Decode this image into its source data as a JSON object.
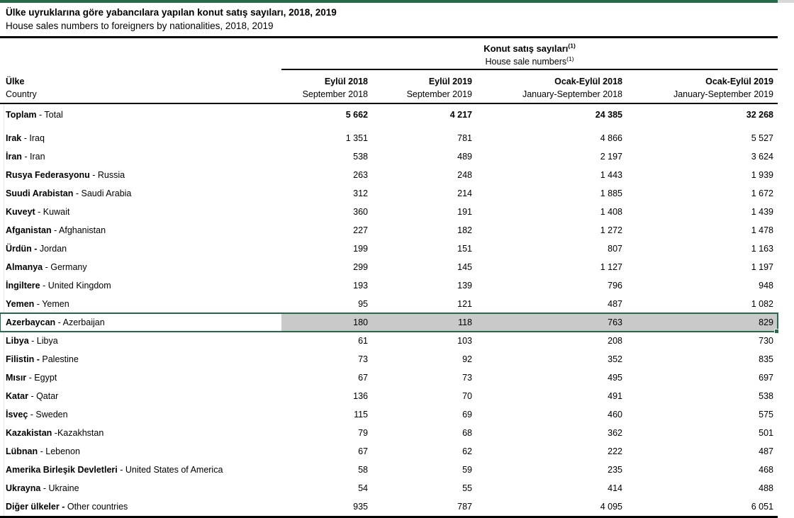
{
  "title": {
    "tr": "Ülke uyruklarına göre yabancılara yapılan konut satış sayıları, 2018, 2019",
    "en": "House sales numbers to foreigners by nationalities, 2018, 2019"
  },
  "table": {
    "span_header": {
      "tr": "Konut satış sayıları",
      "en": "House sale numbers",
      "footnote_marker": "(1)"
    },
    "row_header": {
      "tr": "Ülke",
      "en": "Country"
    },
    "columns": [
      {
        "tr": "Eylül 2018",
        "en": "September 2018"
      },
      {
        "tr": "Eylül 2019",
        "en": "September 2019"
      },
      {
        "tr": "Ocak-Eylül 2018",
        "en": "January-September 2018"
      },
      {
        "tr": "Ocak-Eylül 2019",
        "en": "January-September 2019"
      }
    ],
    "total_row": {
      "bold": "Toplam",
      "rest": " - Total",
      "values": [
        "5 662",
        "4 217",
        "24 385",
        "32 268"
      ]
    },
    "rows": [
      {
        "bold": "Irak",
        "rest": " - Iraq",
        "values": [
          "1 351",
          "781",
          "4 866",
          "5 527"
        ]
      },
      {
        "bold": "İran",
        "rest": " - Iran",
        "values": [
          "538",
          "489",
          "2 197",
          "3 624"
        ]
      },
      {
        "bold": "Rusya Federasyonu",
        "rest": " - Russia",
        "values": [
          "263",
          "248",
          "1 443",
          "1 939"
        ]
      },
      {
        "bold": "Suudi Arabistan",
        "rest": " - Saudi Arabia",
        "values": [
          "312",
          "214",
          "1 885",
          "1 672"
        ]
      },
      {
        "bold": "Kuveyt",
        "rest": " - Kuwait",
        "values": [
          "360",
          "191",
          "1 408",
          "1 439"
        ]
      },
      {
        "bold": "Afganistan",
        "rest": " - Afghanistan",
        "values": [
          "227",
          "182",
          "1 272",
          "1 478"
        ]
      },
      {
        "bold": "Ürdün -",
        "rest": " Jordan",
        "values": [
          "199",
          "151",
          "807",
          "1 163"
        ]
      },
      {
        "bold": "Almanya",
        "rest": " - Germany",
        "values": [
          "299",
          "145",
          "1 127",
          "1 197"
        ]
      },
      {
        "bold": "İngiltere",
        "rest": " - United Kingdom",
        "values": [
          "193",
          "139",
          "796",
          "948"
        ]
      },
      {
        "bold": "Yemen",
        "rest": " - Yemen",
        "values": [
          "95",
          "121",
          "487",
          "1 082"
        ]
      },
      {
        "bold": "Azerbaycan",
        "rest": " - Azerbaijan",
        "values": [
          "180",
          "118",
          "763",
          "829"
        ],
        "selected": true
      },
      {
        "bold": "Libya",
        "rest": " - Libya",
        "values": [
          "61",
          "103",
          "208",
          "730"
        ]
      },
      {
        "bold": "Filistin -",
        "rest": " Palestine",
        "values": [
          "73",
          "92",
          "352",
          "835"
        ]
      },
      {
        "bold": "Mısır",
        "rest": " - Egypt",
        "values": [
          "67",
          "73",
          "495",
          "697"
        ]
      },
      {
        "bold": "Katar",
        "rest": " - Qatar",
        "values": [
          "136",
          "70",
          "491",
          "538"
        ]
      },
      {
        "bold": "İsveç",
        "rest": " - Sweden",
        "values": [
          "115",
          "69",
          "460",
          "575"
        ]
      },
      {
        "bold": "Kazakistan",
        "rest": " -Kazakhstan",
        "values": [
          "79",
          "68",
          "362",
          "501"
        ]
      },
      {
        "bold": "Lübnan",
        "rest": " - Lebenon",
        "values": [
          "67",
          "62",
          "222",
          "487"
        ]
      },
      {
        "bold": "Amerika Birleşik Devletleri",
        "rest": " - United States of America",
        "values": [
          "58",
          "59",
          "235",
          "468"
        ]
      },
      {
        "bold": "Ukrayna",
        "rest": " - Ukraine",
        "values": [
          "54",
          "55",
          "414",
          "488"
        ]
      },
      {
        "bold": "Diğer ülkeler -",
        "rest": " Other countries",
        "values": [
          "935",
          "787",
          "4 095",
          "6 051"
        ]
      }
    ]
  },
  "colors": {
    "accent_green": "#256b49",
    "selected_fill": "#c9c9c9"
  }
}
